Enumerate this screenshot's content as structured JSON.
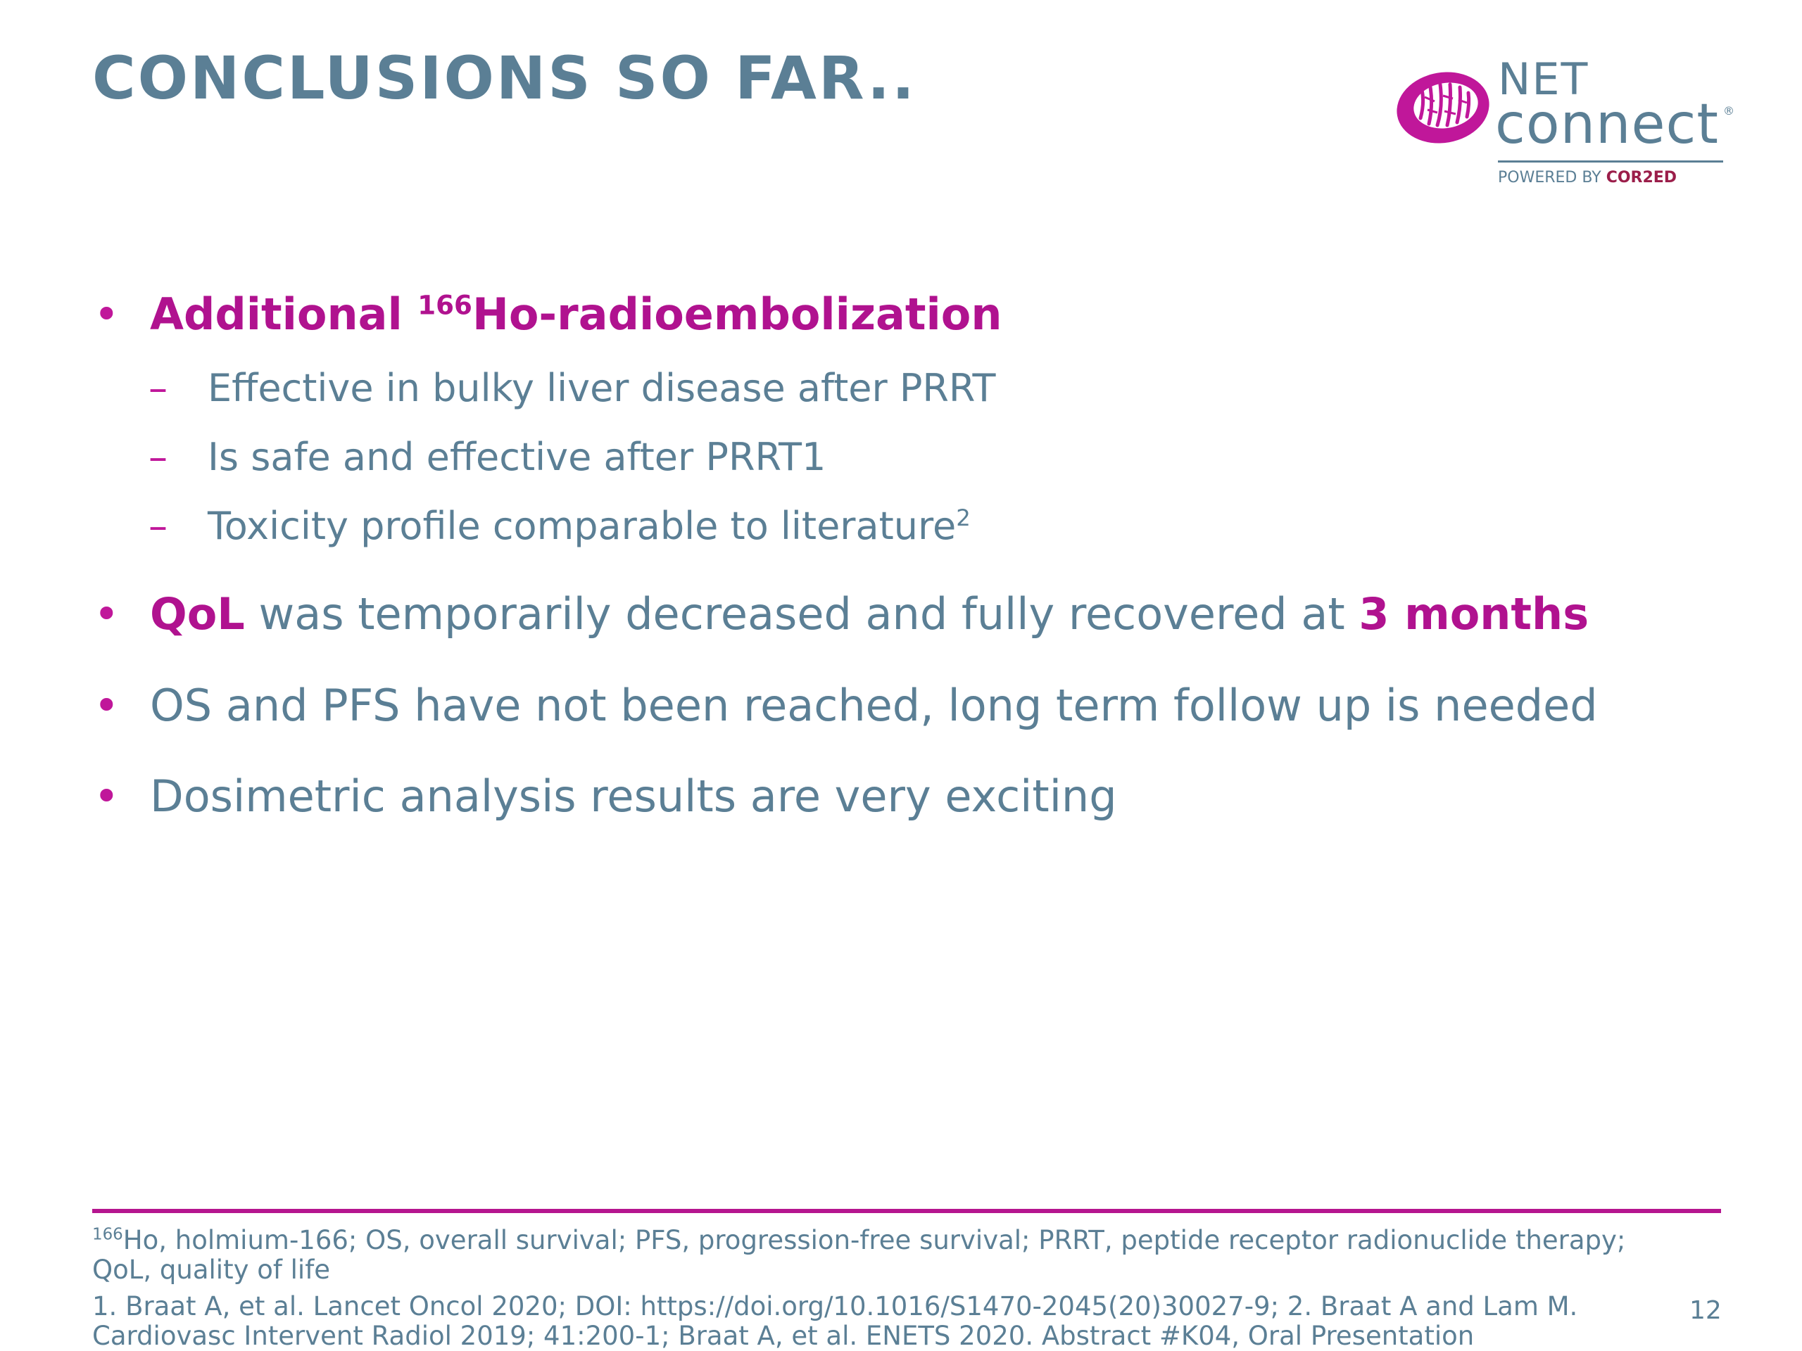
{
  "slide": {
    "title": "CONCLUSIONS SO FAR..",
    "page_number": "12"
  },
  "logo": {
    "net": "NET",
    "connect": "connect",
    "registered": "®",
    "powered_by": "POWERED BY",
    "brand": "COR2ED"
  },
  "bullets": {
    "b1": {
      "prefix": "Additional ",
      "sup": "166",
      "rest": "Ho-radioembolization",
      "subs": [
        "Effective in bulky liver disease after PRRT",
        "Is safe and effective after PRRT1",
        "Toxicity profile comparable to literature"
      ],
      "sub3_sup": "2"
    },
    "b2": {
      "highlight": "QoL",
      "middle": " was temporarily decreased and fully recovered at ",
      "highlight2": "3 months"
    },
    "b3": "OS and PFS have not been reached, long term follow up is needed",
    "b4": "Dosimetric analysis results are very exciting"
  },
  "footer": {
    "abbr_sup": "166",
    "abbr_line1": "Ho, holmium-166; OS, overall survival; PFS, progression-free survival; PRRT, peptide receptor radionuclide therapy;",
    "abbr_line2": "QoL, quality of life",
    "ref_line1": "1. Braat A, et al. Lancet Oncol 2020; DOI: https://doi.org/10.1016/S1470-2045(20)30027-9; 2. Braat A and Lam M.",
    "ref_line2": "Cardiovasc Intervent Radiol 2019; 41:200-1; Braat A, et al. ENETS 2020. Abstract #K04, Oral Presentation"
  },
  "colors": {
    "text": "#5b7f95",
    "accent": "#b0128f",
    "logo_mark": "#c0179a"
  },
  "icons": {
    "logo_mark": "zebra-stripe-oval-icon"
  }
}
